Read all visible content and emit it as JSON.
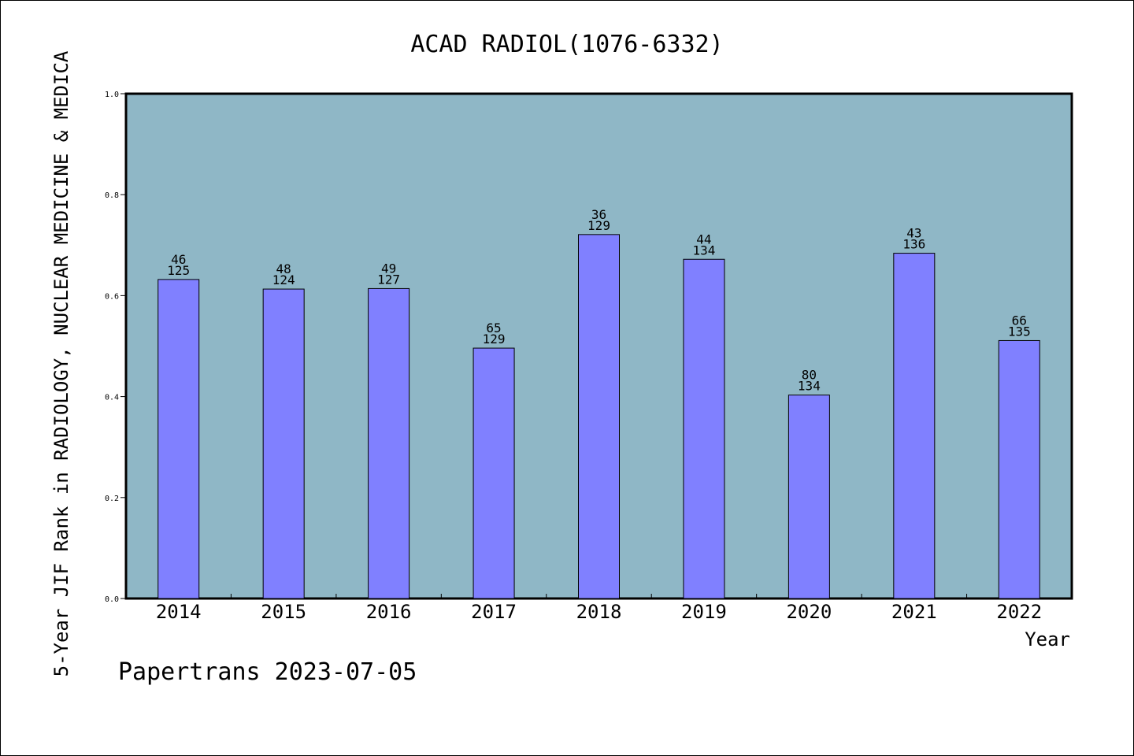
{
  "chart_data": {
    "type": "bar",
    "title": "ACAD RADIOL(1076-6332)",
    "ylabel": "5-Year JIF Rank in RADIOLOGY, NUCLEAR MEDICINE & MEDICA",
    "xlabel": "Year",
    "ylim": [
      0.0,
      1.0
    ],
    "yticks": [
      "0.0",
      "0.2",
      "0.4",
      "0.6",
      "0.8",
      "1.0"
    ],
    "grid": false,
    "categories": [
      "2014",
      "2015",
      "2016",
      "2017",
      "2018",
      "2019",
      "2020",
      "2021",
      "2022"
    ],
    "values": [
      0.632,
      0.613,
      0.614,
      0.496,
      0.721,
      0.672,
      0.403,
      0.684,
      0.511
    ],
    "rank": [
      "46",
      "48",
      "49",
      "65",
      "36",
      "44",
      "80",
      "43",
      "66"
    ],
    "total": [
      "125",
      "124",
      "127",
      "129",
      "129",
      "134",
      "134",
      "136",
      "135"
    ],
    "colors": {
      "plot_bg": "#8fb7c6",
      "bar": "#8080ff",
      "outline": "#000000"
    }
  },
  "footer": "Papertrans 2023-07-05"
}
